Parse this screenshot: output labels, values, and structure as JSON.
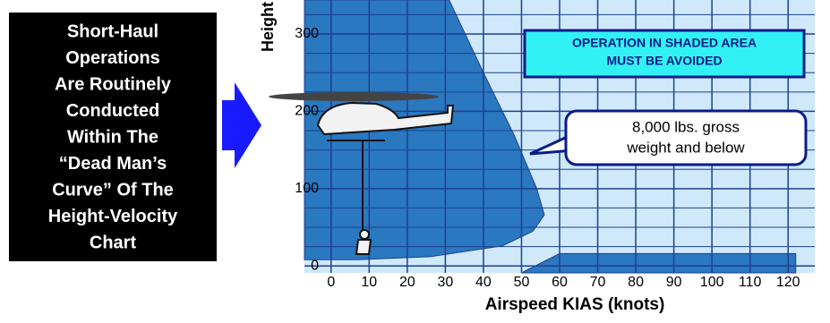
{
  "panel_text": [
    "Short-Haul",
    "Operations",
    "Are Routinely",
    "Conducted",
    "Within The",
    "“Dead Man’s",
    "Curve” Of The",
    "Height-Velocity",
    "Chart"
  ],
  "chart_data": {
    "type": "area",
    "y_label": "Height",
    "x_label": "Airspeed KIAS (knots)",
    "warning": [
      "OPERATION IN SHADED AREA",
      "MUST BE AVOIDED"
    ],
    "callout": [
      "8,000 lbs. gross",
      "weight and below"
    ],
    "xlim": [
      -7,
      127
    ],
    "ylim": [
      -9,
      344
    ],
    "xticks": [
      0,
      10,
      20,
      30,
      40,
      50,
      60,
      70,
      80,
      90,
      100,
      110,
      120
    ],
    "yticks": [
      0,
      100,
      200,
      300
    ],
    "grid": true,
    "grid_color": "#1f3f8f",
    "background": "#cfe9fb",
    "series": [
      {
        "color": "#2a78bf",
        "x": [
          -7,
          31,
          40,
          48,
          54,
          56,
          53,
          45,
          26,
          7,
          -7
        ],
        "values": [
          344,
          344,
          250,
          170,
          100,
          66,
          45,
          26,
          12,
          8,
          8
        ]
      },
      {
        "color": "#2a78bf",
        "x": [
          50,
          60,
          122,
          122
        ],
        "values": [
          -9,
          16,
          16,
          -9
        ]
      }
    ]
  }
}
